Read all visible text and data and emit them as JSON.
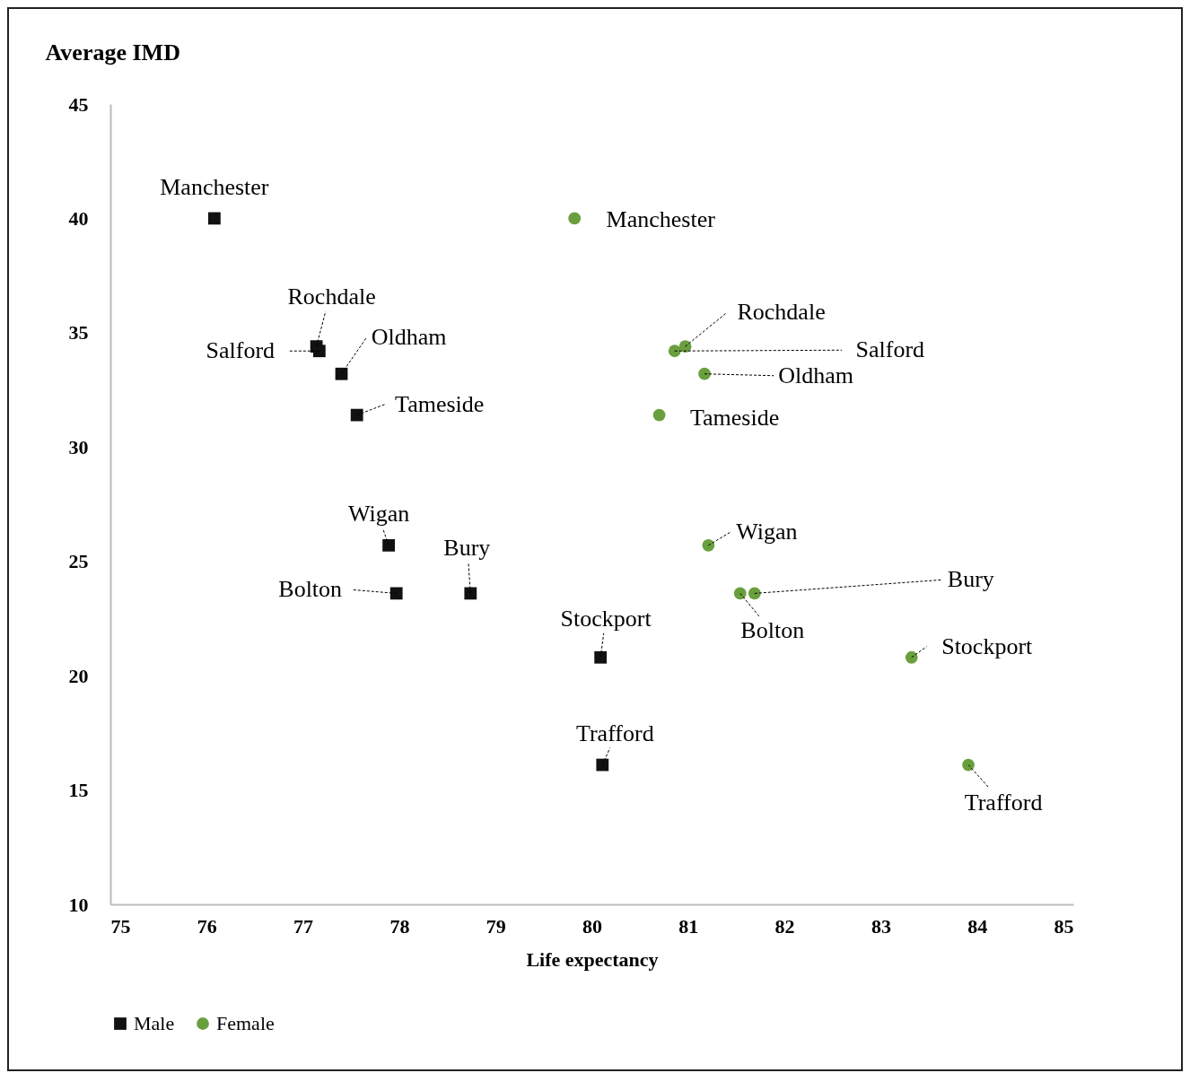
{
  "chart_data": {
    "type": "scatter",
    "ylabel": "Average IMD",
    "xlabel": "Life expectancy",
    "xlim": [
      75,
      85
    ],
    "xticks": [
      75,
      76,
      77,
      78,
      79,
      80,
      81,
      82,
      83,
      84,
      85
    ],
    "ylim": [
      10,
      45
    ],
    "yticks": [
      10,
      15,
      20,
      25,
      30,
      35,
      40,
      45
    ],
    "grid": false,
    "legend": "bottom",
    "series": [
      {
        "name": "Male",
        "color": "#111111",
        "marker": "square",
        "x": [
          76.08,
          77.14,
          77.17,
          77.4,
          77.56,
          77.89,
          77.97,
          78.74,
          80.09,
          80.11
        ],
        "values": [
          40.0,
          34.4,
          34.2,
          33.2,
          31.4,
          25.7,
          23.6,
          23.6,
          20.8,
          16.1
        ]
      },
      {
        "name": "Female",
        "color": "#6a9f3e",
        "marker": "circle",
        "x": [
          79.82,
          80.97,
          80.86,
          81.17,
          80.7,
          81.21,
          81.54,
          81.69,
          83.32,
          83.91
        ],
        "values": [
          40.0,
          34.4,
          34.2,
          33.2,
          31.4,
          25.7,
          23.6,
          23.6,
          20.8,
          16.1
        ]
      }
    ],
    "annotations": [
      {
        "text": "Manchester",
        "x": 76.08,
        "y": 40.0
      },
      {
        "text": "Rochdale",
        "x": 77.14,
        "y": 34.4
      },
      {
        "text": "Salford",
        "x": 77.17,
        "y": 34.2
      },
      {
        "text": "Oldham",
        "x": 77.4,
        "y": 33.2
      },
      {
        "text": "Tameside",
        "x": 77.56,
        "y": 31.4
      },
      {
        "text": "Wigan",
        "x": 77.89,
        "y": 25.7
      },
      {
        "text": "Bolton",
        "x": 77.97,
        "y": 23.6
      },
      {
        "text": "Bury",
        "x": 78.74,
        "y": 23.6
      },
      {
        "text": "Stockport",
        "x": 80.09,
        "y": 20.8
      },
      {
        "text": "Trafford",
        "x": 80.11,
        "y": 16.1
      },
      {
        "text": "Manchester",
        "x": 79.82,
        "y": 40.0
      },
      {
        "text": "Rochdale",
        "x": 80.97,
        "y": 34.4
      },
      {
        "text": "Salford",
        "x": 80.86,
        "y": 34.2
      },
      {
        "text": "Oldham",
        "x": 81.17,
        "y": 33.2
      },
      {
        "text": "Tameside",
        "x": 80.7,
        "y": 31.4
      },
      {
        "text": "Wigan",
        "x": 81.21,
        "y": 25.7
      },
      {
        "text": "Bolton",
        "x": 81.54,
        "y": 23.6
      },
      {
        "text": "Bury",
        "x": 81.69,
        "y": 23.6
      },
      {
        "text": "Stockport",
        "x": 83.32,
        "y": 20.8
      },
      {
        "text": "Trafford",
        "x": 83.91,
        "y": 16.1
      }
    ]
  }
}
